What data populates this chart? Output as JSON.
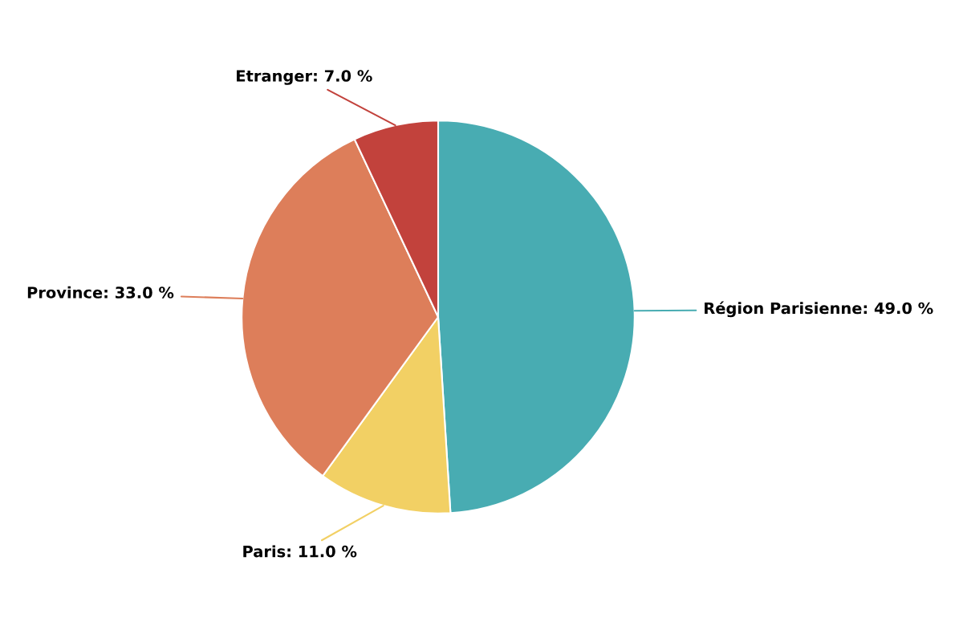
{
  "chart_data": {
    "type": "pie",
    "categories": [
      "Région Parisienne",
      "Paris",
      "Province",
      "Etranger"
    ],
    "values": [
      49,
      11,
      33,
      7
    ],
    "value_labels": [
      "49.0 %",
      "11.0 %",
      "33.0 %",
      "7.0 %"
    ],
    "colors": [
      "#48acb2",
      "#f2d064",
      "#dd7e5a",
      "#c2423c"
    ]
  }
}
